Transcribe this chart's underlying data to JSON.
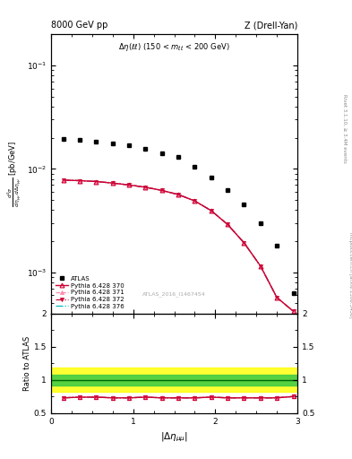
{
  "title_left": "8000 GeV pp",
  "title_right": "Z (Drell-Yan)",
  "watermark": "ATLAS_2016_I1467454",
  "ylabel_ratio": "Ratio to ATLAS",
  "right_label_top": "Rivet 3.1.10, ≥ 3.4M events",
  "right_label_bot": "mcplots.cern.ch [arXiv:1306.3436]",
  "atlas_x": [
    0.15,
    0.35,
    0.55,
    0.75,
    0.95,
    1.15,
    1.35,
    1.55,
    1.75,
    1.95,
    2.15,
    2.35,
    2.55,
    2.75,
    2.95
  ],
  "atlas_y": [
    0.0195,
    0.019,
    0.0185,
    0.0178,
    0.0168,
    0.0158,
    0.0143,
    0.013,
    0.0105,
    0.0082,
    0.0062,
    0.0045,
    0.003,
    0.0018,
    0.00063
  ],
  "pythia_x": [
    0.15,
    0.35,
    0.55,
    0.75,
    0.95,
    1.15,
    1.35,
    1.55,
    1.75,
    1.95,
    2.15,
    2.35,
    2.55,
    2.75,
    2.95
  ],
  "py370_y": [
    0.0078,
    0.0077,
    0.00755,
    0.0073,
    0.007,
    0.00665,
    0.0062,
    0.00565,
    0.0049,
    0.00395,
    0.0029,
    0.00193,
    0.00115,
    0.00057,
    0.00042
  ],
  "py371_y": [
    0.0078,
    0.0077,
    0.00755,
    0.0073,
    0.007,
    0.00665,
    0.0062,
    0.00565,
    0.0049,
    0.00395,
    0.0029,
    0.00193,
    0.00115,
    0.00057,
    0.00042
  ],
  "py372_y": [
    0.0078,
    0.0077,
    0.00755,
    0.0073,
    0.007,
    0.00665,
    0.0062,
    0.00565,
    0.0049,
    0.00395,
    0.0029,
    0.00193,
    0.00115,
    0.00057,
    0.00042
  ],
  "py376_y": [
    0.0078,
    0.0077,
    0.00755,
    0.0073,
    0.007,
    0.00665,
    0.0062,
    0.00565,
    0.0049,
    0.00395,
    0.0029,
    0.00193,
    0.00115,
    0.00057,
    0.00042
  ],
  "ratio_370": [
    0.73,
    0.74,
    0.74,
    0.73,
    0.73,
    0.74,
    0.73,
    0.73,
    0.73,
    0.74,
    0.73,
    0.73,
    0.73,
    0.73,
    0.75
  ],
  "ratio_371": [
    0.73,
    0.74,
    0.74,
    0.73,
    0.73,
    0.74,
    0.73,
    0.73,
    0.73,
    0.74,
    0.73,
    0.73,
    0.73,
    0.73,
    0.75
  ],
  "ratio_372": [
    0.73,
    0.74,
    0.74,
    0.73,
    0.73,
    0.74,
    0.73,
    0.73,
    0.73,
    0.74,
    0.73,
    0.73,
    0.73,
    0.73,
    0.75
  ],
  "ratio_376": [
    0.73,
    0.74,
    0.74,
    0.73,
    0.73,
    0.74,
    0.73,
    0.73,
    0.73,
    0.74,
    0.73,
    0.73,
    0.73,
    0.73,
    0.75
  ],
  "ylim_main": [
    0.0004,
    0.2
  ],
  "ylim_ratio": [
    0.5,
    2.0
  ],
  "xlim": [
    0.0,
    3.0
  ],
  "color_370": "#cc0033",
  "color_371": "#ff88aa",
  "color_372": "#cc0033",
  "color_376": "#00bbbb",
  "bg_color": "#ffffff"
}
